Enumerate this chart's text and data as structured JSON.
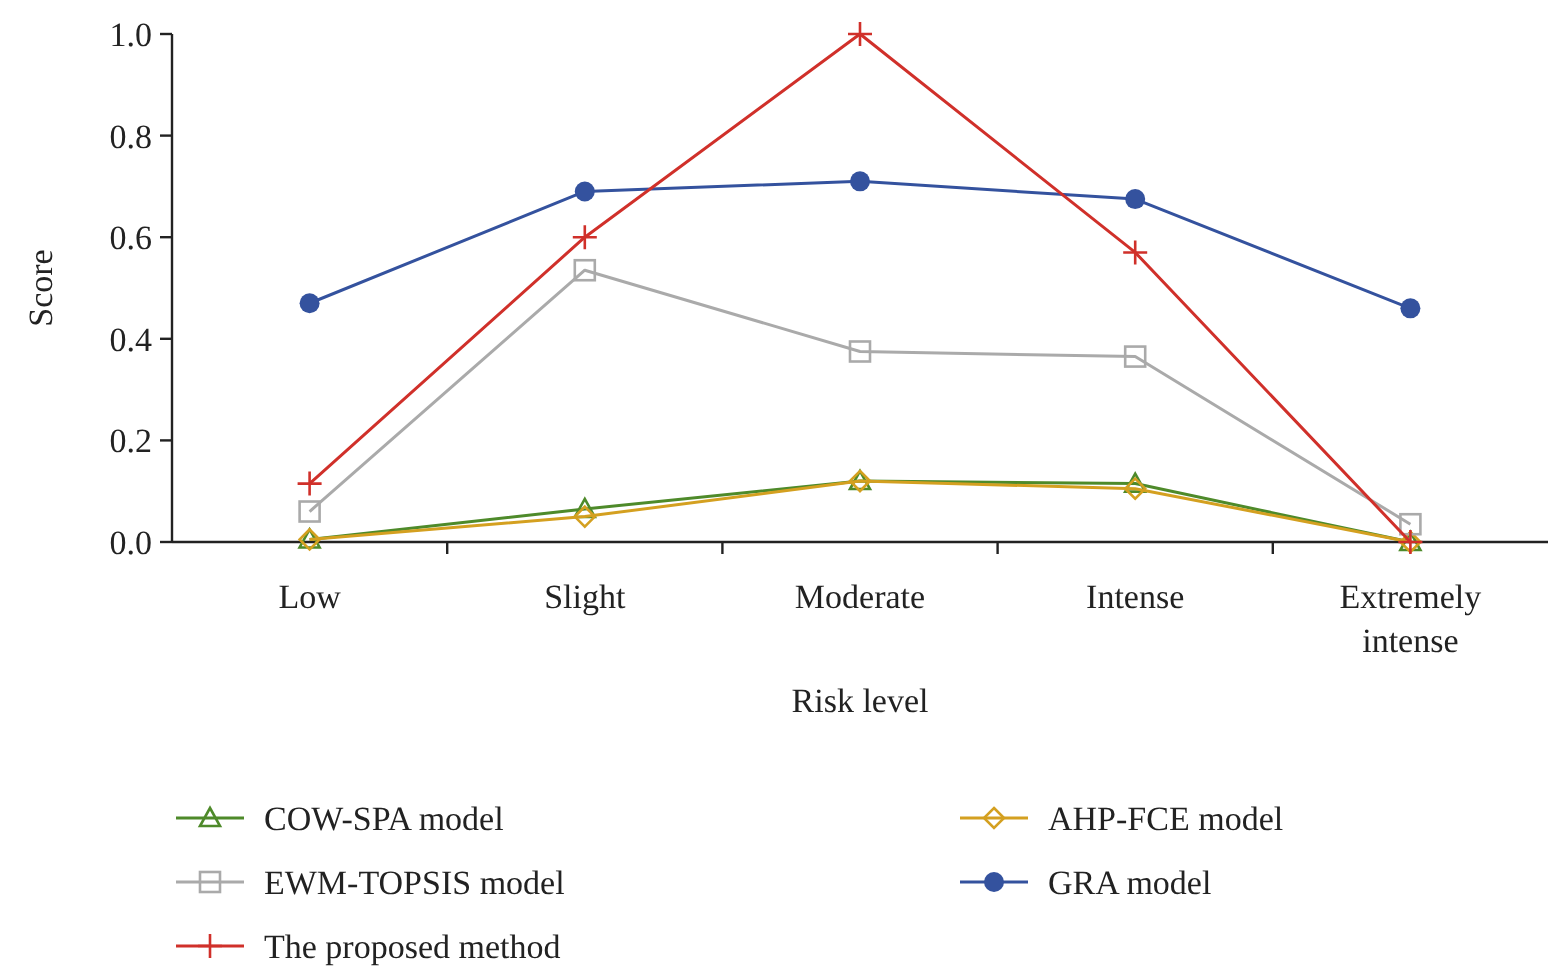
{
  "chart_data": {
    "type": "line",
    "xlabel": "Risk level",
    "ylabel": "Score",
    "categories": [
      "Low",
      "Slight",
      "Moderate",
      "Intense",
      "Extremely intense"
    ],
    "ylim": [
      0,
      1
    ],
    "yticks": [
      {
        "value": 0,
        "label": "0.0"
      },
      {
        "value": 0.2,
        "label": "0.2"
      },
      {
        "value": 0.4,
        "label": "0.4"
      },
      {
        "value": 0.6,
        "label": "0.6"
      },
      {
        "value": 0.8,
        "label": "0.8"
      },
      {
        "value": 1,
        "label": "1.0"
      }
    ],
    "grid": false,
    "legend": "bottom",
    "line_style": "solid",
    "series": [
      {
        "name": "COW-SPA model",
        "color": "#4e8a2a",
        "marker": "triangle",
        "values": [
          0.005,
          0.065,
          0.12,
          0.115,
          0
        ]
      },
      {
        "name": "AHP-FCE model",
        "color": "#d4a020",
        "marker": "diamond",
        "values": [
          0.005,
          0.05,
          0.12,
          0.105,
          0
        ]
      },
      {
        "name": "EWM-TOPSIS model",
        "color": "#aaaaaa",
        "marker": "square",
        "values": [
          0.06,
          0.535,
          0.375,
          0.365,
          0.035
        ]
      },
      {
        "name": "GRA model",
        "color": "#34529e",
        "marker": "circle",
        "values": [
          0.47,
          0.69,
          0.71,
          0.675,
          0.46
        ]
      },
      {
        "name": "The proposed method",
        "color": "#d0302a",
        "marker": "cross",
        "values": [
          0.115,
          0.6,
          1,
          0.57,
          0
        ]
      }
    ]
  }
}
